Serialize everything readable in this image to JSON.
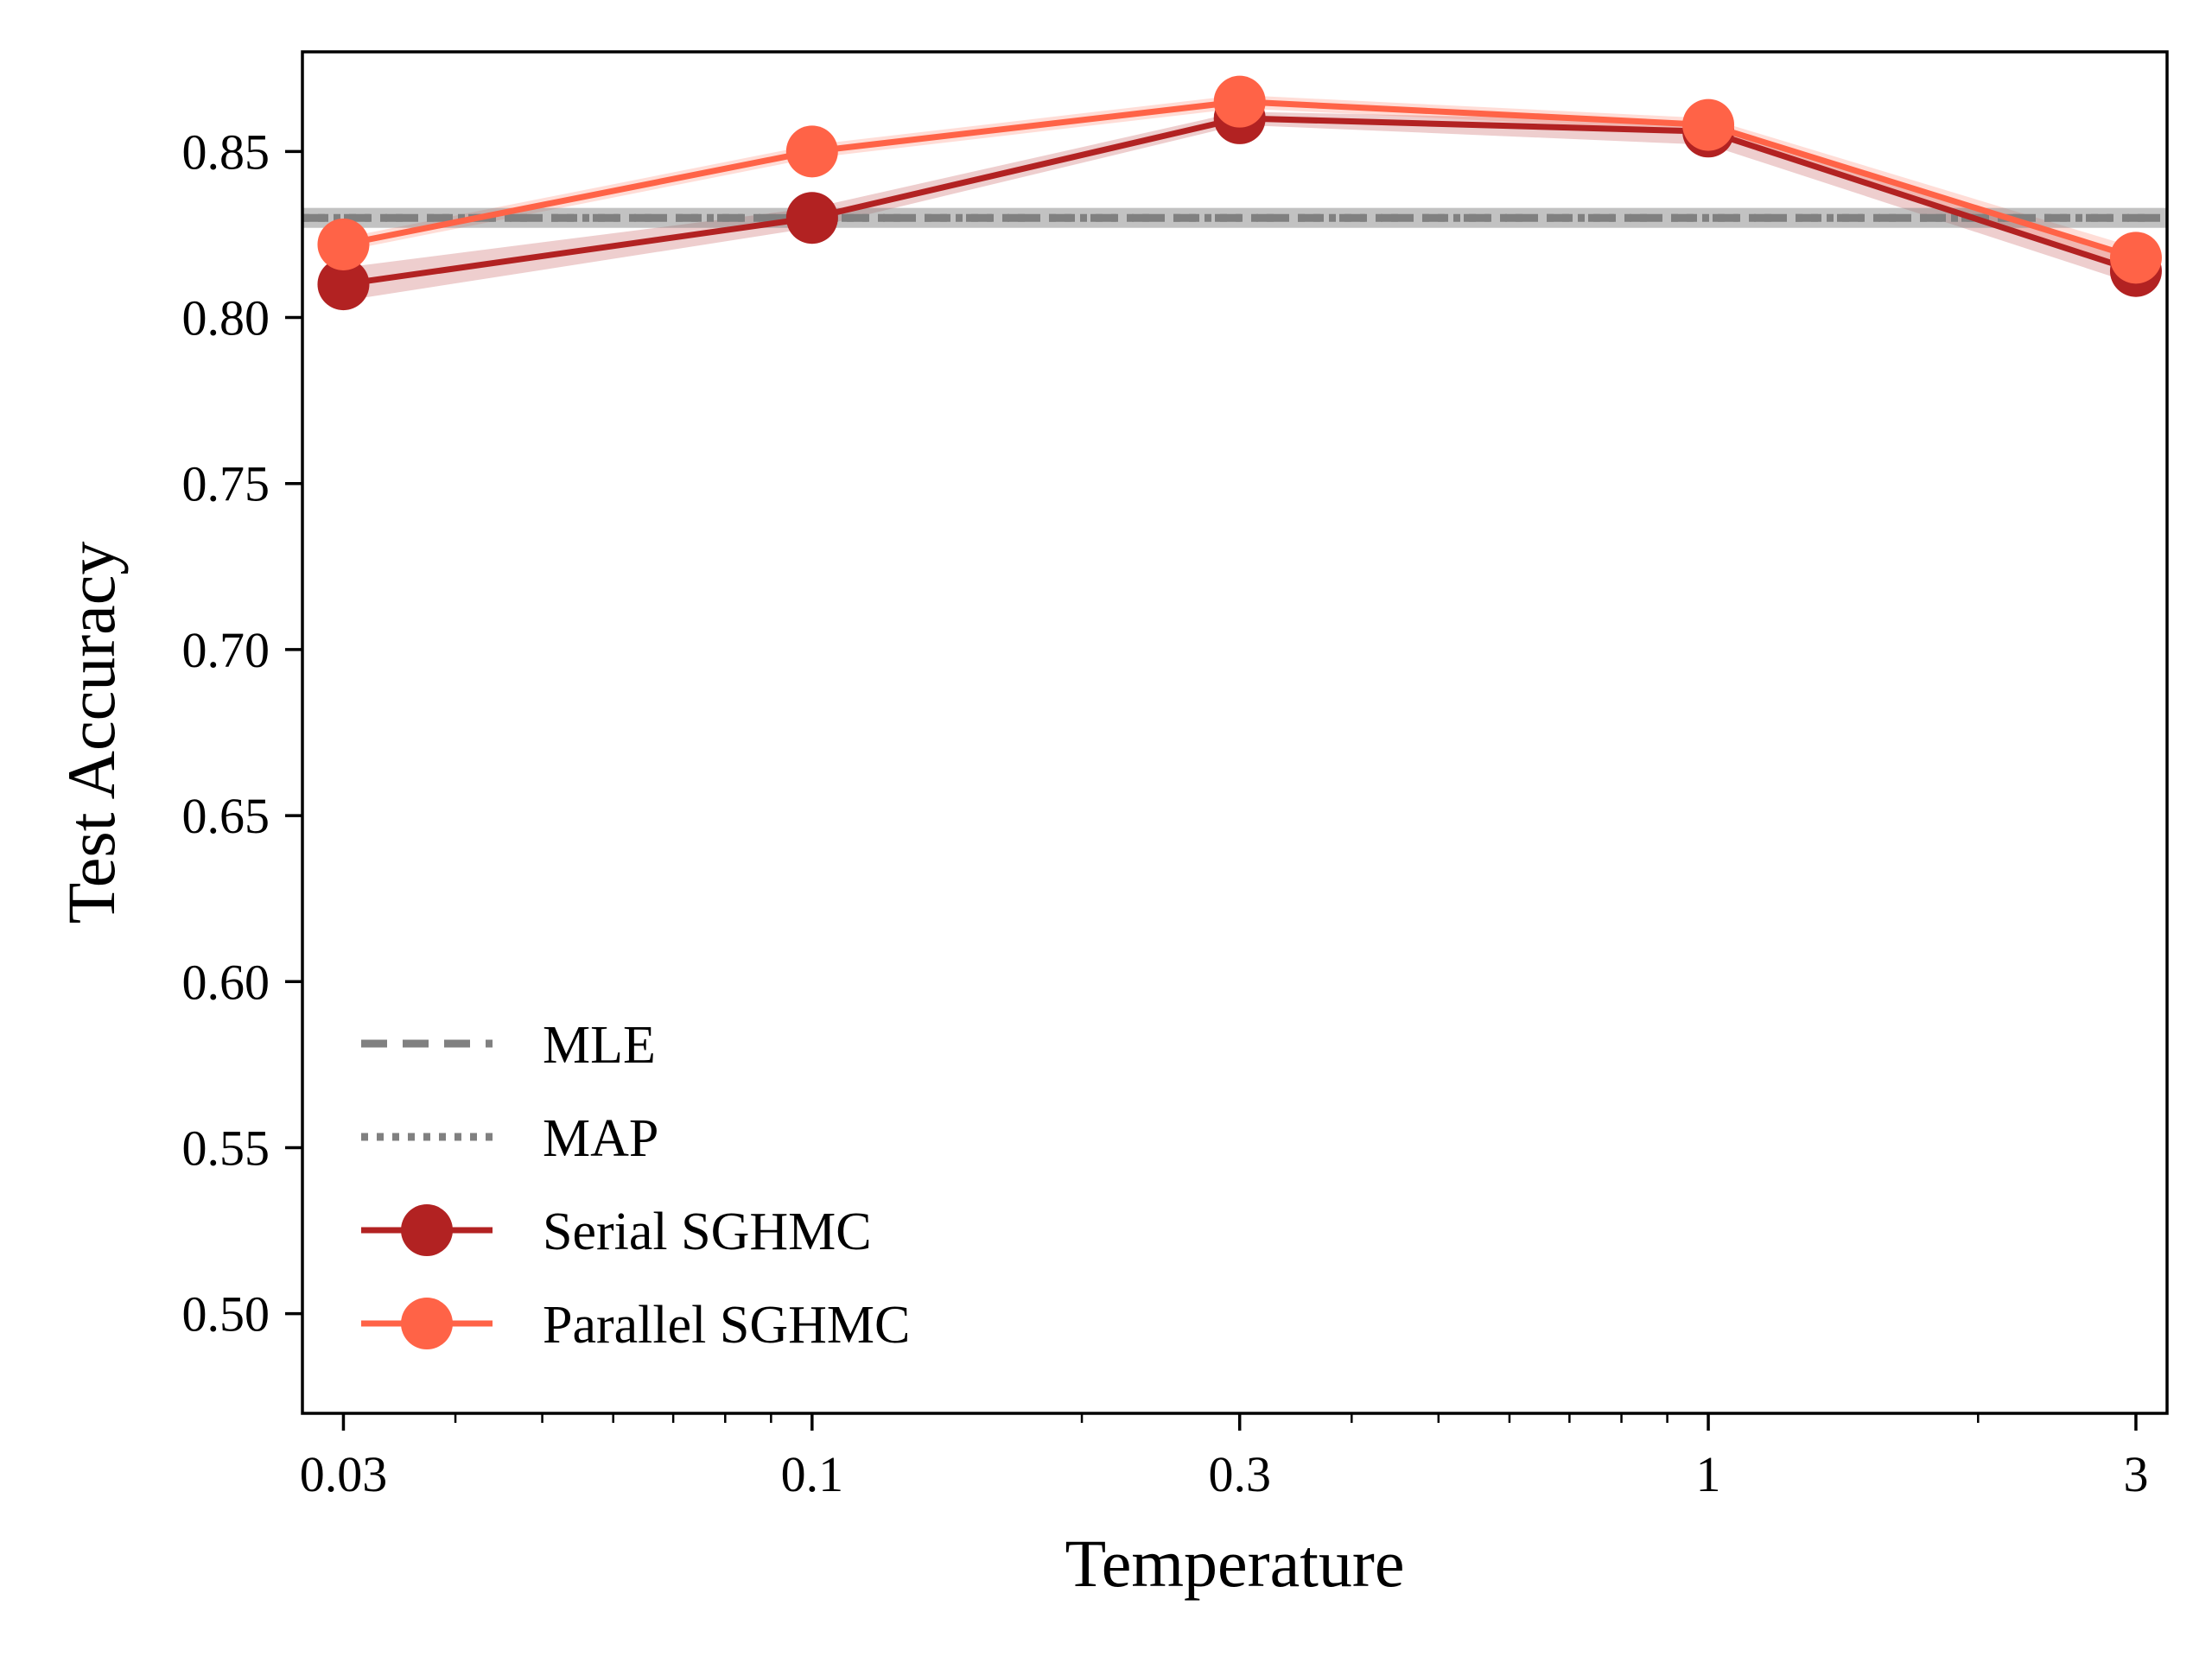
{
  "chart_data": {
    "type": "line",
    "xscale": "log",
    "xlabel": "Temperature",
    "ylabel": "Test Accuracy",
    "x": [
      0.03,
      0.1,
      0.3,
      1,
      3
    ],
    "x_tick_labels": [
      "0.03",
      "0.1",
      "0.3",
      "1",
      "3"
    ],
    "y_ticks": [
      0.5,
      0.55,
      0.6,
      0.65,
      0.7,
      0.75,
      0.8,
      0.85
    ],
    "y_tick_labels": [
      "0.50",
      "0.55",
      "0.60",
      "0.65",
      "0.70",
      "0.75",
      "0.80",
      "0.85"
    ],
    "ylim": [
      0.47,
      0.88
    ],
    "xlim": [
      0.027,
      3.25
    ],
    "grid": false,
    "legend_position": "lower-left",
    "reference_lines": [
      {
        "name": "MLE",
        "value": 0.83,
        "style": "dashed",
        "color": "#808080",
        "band": [
          0.827,
          0.833
        ]
      },
      {
        "name": "MAP",
        "value": 0.83,
        "style": "dotted",
        "color": "#808080",
        "band": [
          0.827,
          0.833
        ]
      }
    ],
    "series": [
      {
        "name": "Serial SGHMC",
        "color": "#b22222",
        "values": [
          0.81,
          0.83,
          0.86,
          0.856,
          0.814
        ],
        "band_lower": [
          0.805,
          0.827,
          0.858,
          0.852,
          0.81
        ],
        "band_upper": [
          0.815,
          0.833,
          0.862,
          0.859,
          0.818
        ]
      },
      {
        "name": "Parallel SGHMC",
        "color": "#ff6347",
        "values": [
          0.822,
          0.85,
          0.865,
          0.858,
          0.818
        ],
        "band_lower": [
          0.82,
          0.848,
          0.863,
          0.856,
          0.815
        ],
        "band_upper": [
          0.824,
          0.852,
          0.867,
          0.86,
          0.821
        ]
      }
    ]
  }
}
